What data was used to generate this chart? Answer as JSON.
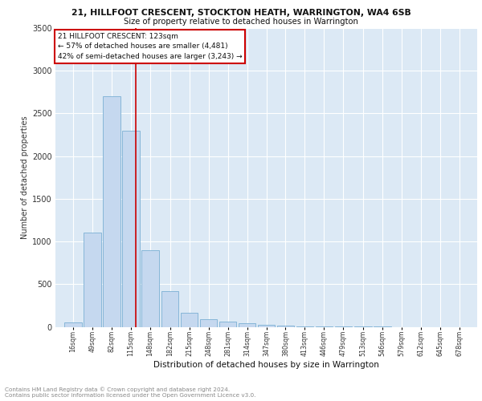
{
  "title": "21, HILLFOOT CRESCENT, STOCKTON HEATH, WARRINGTON, WA4 6SB",
  "subtitle": "Size of property relative to detached houses in Warrington",
  "xlabel": "Distribution of detached houses by size in Warrington",
  "ylabel": "Number of detached properties",
  "footnote1": "Contains HM Land Registry data © Crown copyright and database right 2024.",
  "footnote2": "Contains public sector information licensed under the Open Government Licence v3.0.",
  "bins": [
    16,
    49,
    82,
    115,
    148,
    182,
    215,
    248,
    281,
    314,
    347,
    380,
    413,
    446,
    479,
    513,
    546,
    579,
    612,
    645,
    678
  ],
  "values": [
    50,
    1100,
    2700,
    2300,
    900,
    420,
    160,
    90,
    60,
    40,
    25,
    15,
    8,
    5,
    2,
    1,
    1,
    0,
    0,
    0,
    0
  ],
  "bar_color": "#c5d8ef",
  "bar_edge_color": "#7bafd4",
  "vline_x": 123,
  "vline_color": "#cc0000",
  "annotation_text": "21 HILLFOOT CRESCENT: 123sqm\n← 57% of detached houses are smaller (4,481)\n42% of semi-detached houses are larger (3,243) →",
  "annotation_box_color": "#ffffff",
  "annotation_box_edge": "#cc0000",
  "ylim": [
    0,
    3500
  ],
  "yticks": [
    0,
    500,
    1000,
    1500,
    2000,
    2500,
    3000,
    3500
  ],
  "bg_color": "#dce9f5",
  "grid_color": "#ffffff",
  "bin_width": 30
}
